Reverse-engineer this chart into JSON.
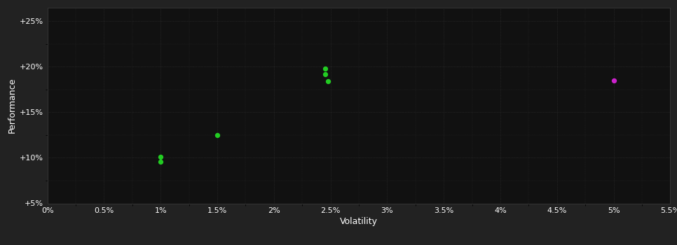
{
  "background_color": "#222222",
  "plot_bg_color": "#111111",
  "grid_color": "#333333",
  "text_color": "#ffffff",
  "xlabel": "Volatility",
  "ylabel": "Performance",
  "xlim": [
    0.0,
    0.055
  ],
  "ylim": [
    0.05,
    0.265
  ],
  "xticks": [
    0.0,
    0.005,
    0.01,
    0.015,
    0.02,
    0.025,
    0.03,
    0.035,
    0.04,
    0.045,
    0.05,
    0.055
  ],
  "xtick_labels": [
    "0%",
    "0.5%",
    "1%",
    "1.5%",
    "2%",
    "2.5%",
    "3%",
    "3.5%",
    "4%",
    "4.5%",
    "5%",
    "5.5%"
  ],
  "yticks": [
    0.05,
    0.1,
    0.15,
    0.2,
    0.25
  ],
  "ytick_labels": [
    "+5%",
    "+10%",
    "+15%",
    "+20%",
    "+25%"
  ],
  "green_points": [
    [
      0.01,
      0.101
    ],
    [
      0.01,
      0.096
    ],
    [
      0.015,
      0.125
    ],
    [
      0.0245,
      0.198
    ],
    [
      0.0245,
      0.192
    ],
    [
      0.0248,
      0.184
    ]
  ],
  "purple_points": [
    [
      0.05,
      0.185
    ]
  ],
  "green_color": "#22cc22",
  "purple_color": "#cc22cc",
  "point_size": 18,
  "axis_fontsize": 9,
  "tick_fontsize": 8
}
